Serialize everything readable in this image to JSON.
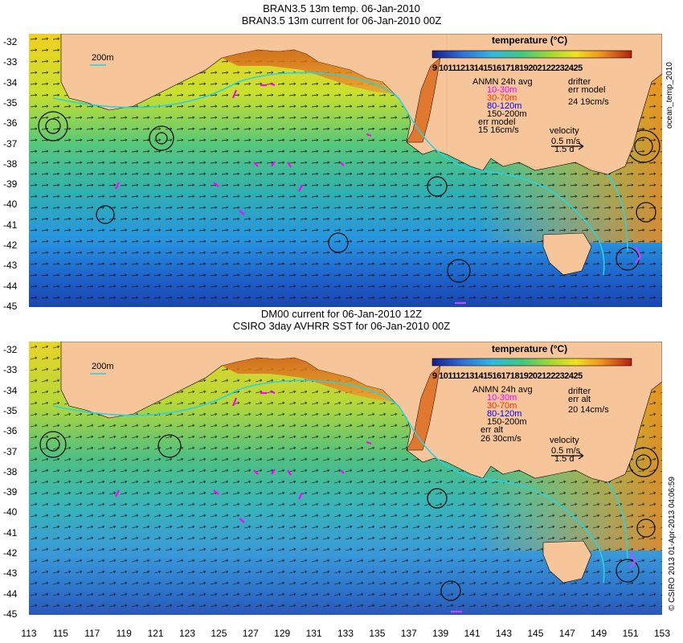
{
  "top_panel": {
    "title_line1": "BRAN3.5 13m temp. 06-Jan-2010",
    "title_line2": "BRAN3.5 13m current for 06-Jan-2010 00Z",
    "isobath_label": "200m",
    "legend": {
      "title": "temperature (°C)",
      "colorbar_labels": "9 10111213141516171819202122232425",
      "anmn_title": "ANMN 24h avg",
      "depth_ranges": [
        "10-30m",
        "30-70m",
        "80-120m",
        "150-200m"
      ],
      "err_label": "err model",
      "err_value": "15 16cm/s",
      "drifter_label": "drifter",
      "drifter_err_label": "err model",
      "drifter_err_value": "24 19cm/s",
      "velocity_label": "velocity",
      "velocity_scale": "0.5 m/s",
      "velocity_time": "1.5 d"
    },
    "side_credit": "ocean_temp_2010"
  },
  "bottom_panel": {
    "title_line1": "DM00 current for 06-Jan-2010 12Z",
    "title_line2": "CSIRO 3day AVHRR SST for 06-Jan-2010 00Z",
    "isobath_label": "200m",
    "legend": {
      "title": "temperature (°C)",
      "colorbar_labels": "9 10111213141516171819202122232425",
      "anmn_title": "ANMN 24h avg",
      "depth_ranges": [
        "10-30m",
        "30-70m",
        "80-120m",
        "150-200m"
      ],
      "err_label": "err alt",
      "err_value": "26 30cm/s",
      "drifter_label": "drifter",
      "drifter_err_label": "err alt",
      "drifter_err_value": "20 14cm/s",
      "velocity_label": "velocity",
      "velocity_scale": "0.5 m/s",
      "velocity_time": "1.5 d"
    },
    "side_credit": "© CSIRO 2013   01-Apr-2013 04:06:59"
  },
  "latitude_ticks": [
    "-32",
    "-33",
    "-34",
    "-35",
    "-36",
    "-37",
    "-38",
    "-39",
    "-40",
    "-41",
    "-42",
    "-43",
    "-44",
    "-45"
  ],
  "longitude_ticks": [
    "113",
    "115",
    "117",
    "119",
    "121",
    "123",
    "125",
    "127",
    "129",
    "131",
    "133",
    "135",
    "137",
    "139",
    "141",
    "143",
    "145",
    "147",
    "149",
    "151",
    "153"
  ],
  "colors": {
    "land": "#f7c59a",
    "isobath": "#27d3e0",
    "depth_10_30": "#ff00ff",
    "depth_30_70": "#ff3000",
    "depth_80_120": "#0000ff",
    "depth_150_200": "#000000",
    "drifter": "#cc44ff"
  }
}
